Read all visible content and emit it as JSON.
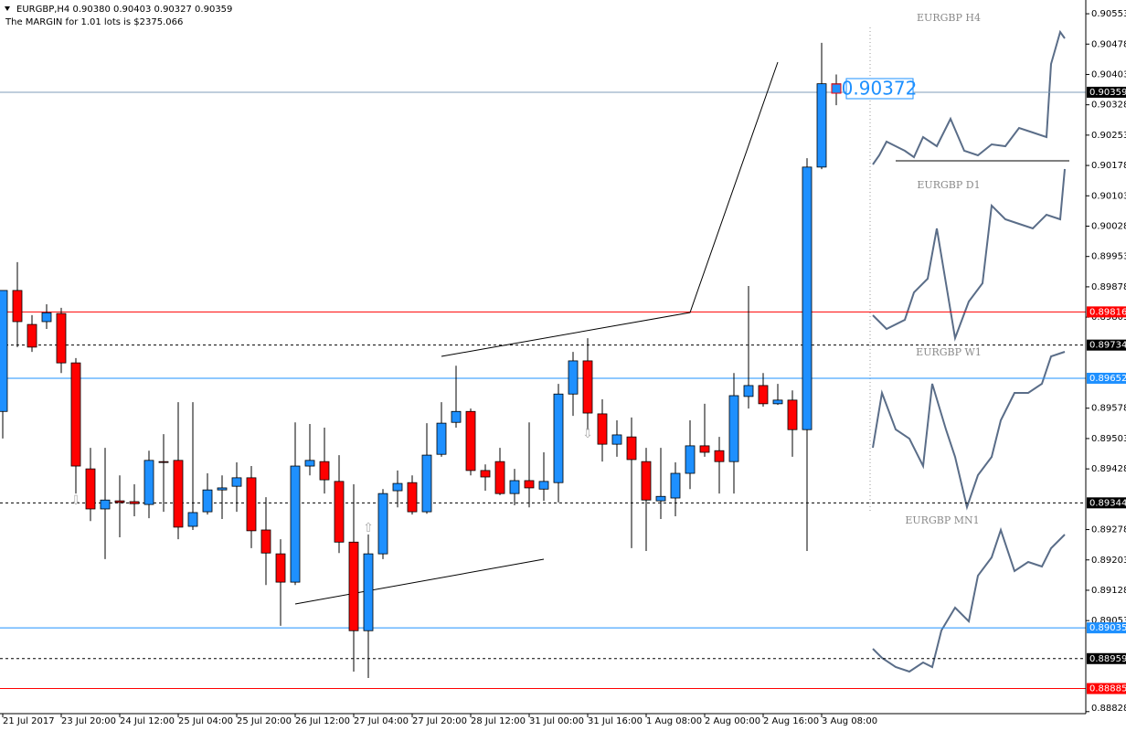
{
  "header": {
    "symbol": "EURGBP,H4  0.90380 0.90403 0.90327 0.90359",
    "margin": "The MARGIN for 1.01 lots is $2375.066"
  },
  "chart_data": {
    "type": "candlestick",
    "categories": [
      "21 Jul 2017",
      null,
      null,
      null,
      "23 Jul 20:00",
      null,
      null,
      null,
      "24 Jul 12:00",
      null,
      null,
      null,
      "25 Jul 04:00",
      null,
      null,
      null,
      "25 Jul 20:00",
      null,
      null,
      null,
      "26 Jul 12:00",
      null,
      null,
      null,
      "27 Jul 04:00",
      null,
      null,
      null,
      "27 Jul 20:00",
      null,
      null,
      null,
      "28 Jul 12:00",
      null,
      null,
      null,
      "31 Jul 00:00",
      null,
      null,
      null,
      "31 Jul 16:00",
      null,
      null,
      null,
      "1 Aug 08:00",
      null,
      null,
      null,
      "2 Aug 00:00",
      null,
      null,
      null,
      "2 Aug 16:00",
      null,
      null,
      null,
      "3 Aug 08:00",
      null
    ],
    "open": [
      0.8957,
      0.89869,
      0.89785,
      0.89792,
      0.89812,
      0.8969,
      0.89428,
      0.89329,
      0.89349,
      0.89347,
      0.8934,
      0.89446,
      0.89449,
      0.89286,
      0.89322,
      0.89376,
      0.89385,
      0.89406,
      0.89277,
      0.89218,
      0.89148,
      0.89435,
      0.89446,
      0.89397,
      0.89247,
      0.89028,
      0.89218,
      0.89374,
      0.89394,
      0.89322,
      0.89464,
      0.89543,
      0.8957,
      0.89424,
      0.89446,
      0.89367,
      0.89399,
      0.89378,
      0.89394,
      0.89613,
      0.89695,
      0.89564,
      0.89489,
      0.89507,
      0.89446,
      0.89349,
      0.89356,
      0.89417,
      0.89485,
      0.89473,
      0.89446,
      0.89607,
      0.89634,
      0.89589,
      0.89598,
      0.89525,
      0.90174,
      0.9038
    ],
    "high": [
      0.89869,
      0.89939,
      0.89808,
      0.89835,
      0.89826,
      0.89702,
      0.8948,
      0.8948,
      0.89412,
      0.8939,
      0.89473,
      0.89514,
      0.89593,
      0.89593,
      0.89417,
      0.89412,
      0.89444,
      0.89435,
      0.89358,
      0.89254,
      0.89543,
      0.89539,
      0.8953,
      0.89462,
      0.8939,
      0.89266,
      0.89378,
      0.89424,
      0.89412,
      0.89541,
      0.89593,
      0.89683,
      0.89577,
      0.89439,
      0.8948,
      0.89428,
      0.89543,
      0.89469,
      0.89638,
      0.89717,
      0.89751,
      0.896,
      0.89548,
      0.89555,
      0.8948,
      0.8948,
      0.89444,
      0.89548,
      0.89589,
      0.89507,
      0.89665,
      0.8988,
      0.89665,
      0.89638,
      0.89622,
      0.90196,
      0.90481,
      0.90403
    ],
    "low": [
      0.89503,
      0.89729,
      0.89717,
      0.89774,
      0.89665,
      0.89367,
      0.89299,
      0.89205,
      0.89259,
      0.89311,
      0.89306,
      0.89322,
      0.89254,
      0.89277,
      0.89315,
      0.89304,
      0.89322,
      0.89232,
      0.89141,
      0.8904,
      0.89141,
      0.89412,
      0.89367,
      0.8922,
      0.88927,
      0.88911,
      0.89205,
      0.89333,
      0.89315,
      0.89317,
      0.89458,
      0.8953,
      0.89412,
      0.89374,
      0.89363,
      0.89338,
      0.89333,
      0.89349,
      0.89345,
      0.89559,
      0.89525,
      0.89446,
      0.89458,
      0.89232,
      0.89225,
      0.89304,
      0.89311,
      0.89378,
      0.89458,
      0.89367,
      0.89367,
      0.89577,
      0.89582,
      0.89586,
      0.89458,
      0.89225,
      0.90169,
      0.90327
    ],
    "close": [
      0.89869,
      0.89792,
      0.89729,
      0.89814,
      0.8969,
      0.89435,
      0.89329,
      0.89351,
      0.89345,
      0.89342,
      0.89449,
      0.89444,
      0.89284,
      0.8932,
      0.89376,
      0.89381,
      0.89406,
      0.89275,
      0.8922,
      0.89148,
      0.89435,
      0.89449,
      0.89401,
      0.89247,
      0.89028,
      0.89218,
      0.89367,
      0.89392,
      0.89322,
      0.89462,
      0.89541,
      0.8957,
      0.89424,
      0.89408,
      0.89367,
      0.89399,
      0.89381,
      0.89397,
      0.89613,
      0.89695,
      0.89566,
      0.89489,
      0.89512,
      0.89451,
      0.89351,
      0.8936,
      0.89417,
      0.89485,
      0.89469,
      0.89446,
      0.89609,
      0.89634,
      0.89589,
      0.89598,
      0.89525,
      0.90174,
      0.9038,
      0.90359
    ],
    "up_color": "#1e90ff",
    "down_color": "#ff0000",
    "ylim": [
      0.88823,
      0.90587
    ],
    "yticks": [
      0.90553,
      0.90478,
      0.90403,
      0.90328,
      0.90253,
      0.90178,
      0.90103,
      0.90028,
      0.89953,
      0.89878,
      0.89803,
      0.89578,
      0.89503,
      0.89428,
      0.89278,
      0.89203,
      0.89128,
      0.89053,
      0.88828
    ],
    "levels": [
      {
        "value": 0.90359,
        "color": "#7f9db9",
        "label_color": "#000000",
        "dashed": false
      },
      {
        "value": 0.89816,
        "color": "#ff0000",
        "label_color": "#ff0000",
        "dashed": false
      },
      {
        "value": 0.89734,
        "color": "#000000",
        "label_color": "#000000",
        "dashed": true
      },
      {
        "value": 0.89652,
        "color": "#1e90ff",
        "label_color": "#1e90ff",
        "dashed": false
      },
      {
        "value": 0.89344,
        "color": "#000000",
        "label_color": "#000000",
        "dashed": true
      },
      {
        "value": 0.89035,
        "color": "#1e90ff",
        "label_color": "#1e90ff",
        "dashed": false
      },
      {
        "value": 0.88959,
        "color": "#000000",
        "label_color": "#000000",
        "dashed": true
      },
      {
        "value": 0.88885,
        "color": "#ff0000",
        "label_color": "#ff0000",
        "dashed": false
      }
    ],
    "price_label": "0.90372",
    "panels": [
      "EURGBP H4",
      "EURGBP D1",
      "EURGBP W1",
      "EURGBP MN1"
    ]
  }
}
